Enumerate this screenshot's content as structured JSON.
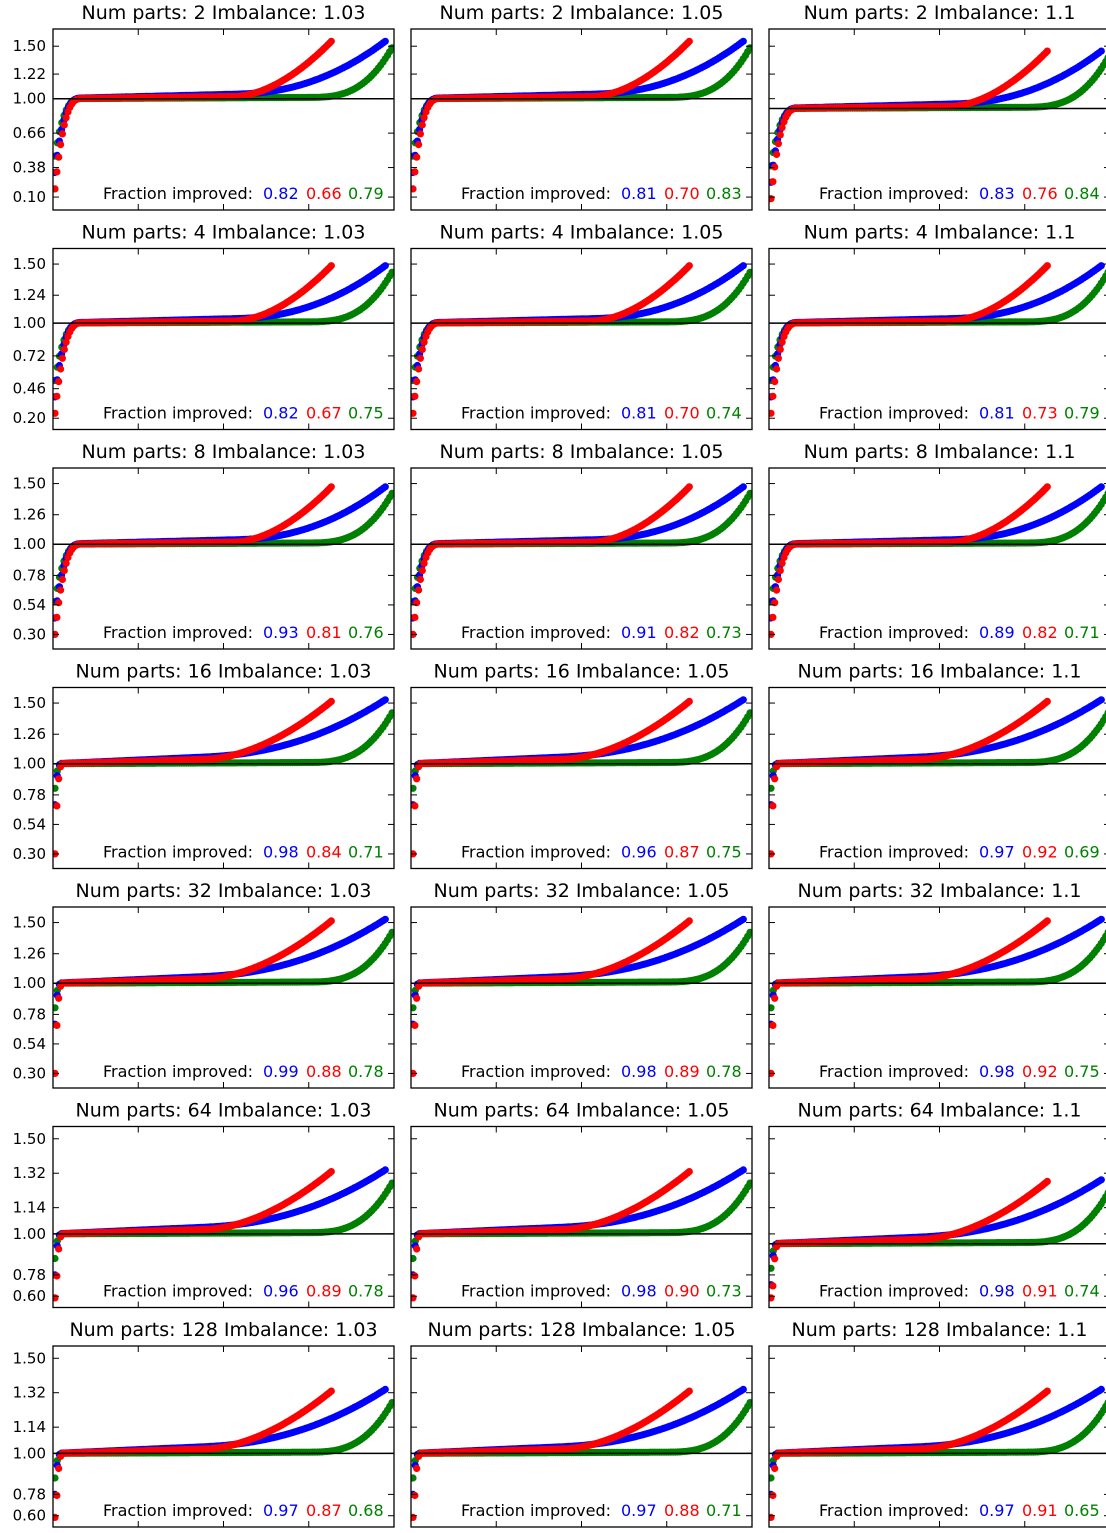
{
  "chart_data": {
    "type": "scatter",
    "layout_rows": 7,
    "layout_cols": 3,
    "series_colors": [
      "#0000ff",
      "#ff0000",
      "#008000"
    ],
    "reference_line_y": 1.0,
    "fraction_label": "Fraction improved:",
    "panels": [
      {
        "title": "Num parts: 2 Imbalance: 1.03",
        "yticks": [
          "1.50",
          "1.22",
          "1.00",
          "0.66",
          "0.38",
          "0.10"
        ],
        "fractions": [
          "0.82",
          "0.66",
          "0.79"
        ]
      },
      {
        "title": "Num parts: 2 Imbalance: 1.05",
        "yticks": [],
        "fractions": [
          "0.81",
          "0.70",
          "0.83"
        ]
      },
      {
        "title": "Num parts: 2 Imbalance: 1.1",
        "yticks": [],
        "fractions": [
          "0.83",
          "0.76",
          "0.84"
        ]
      },
      {
        "title": "Num parts: 4 Imbalance: 1.03",
        "yticks": [
          "1.50",
          "1.24",
          "1.00",
          "0.72",
          "0.46",
          "0.20"
        ],
        "fractions": [
          "0.82",
          "0.67",
          "0.75"
        ]
      },
      {
        "title": "Num parts: 4 Imbalance: 1.05",
        "yticks": [],
        "fractions": [
          "0.81",
          "0.70",
          "0.74"
        ]
      },
      {
        "title": "Num parts: 4 Imbalance: 1.1",
        "yticks": [],
        "fractions": [
          "0.81",
          "0.73",
          "0.79"
        ]
      },
      {
        "title": "Num parts: 8 Imbalance: 1.03",
        "yticks": [
          "1.50",
          "1.26",
          "1.00",
          "0.78",
          "0.54",
          "0.30"
        ],
        "fractions": [
          "0.93",
          "0.81",
          "0.76"
        ]
      },
      {
        "title": "Num parts: 8 Imbalance: 1.05",
        "yticks": [],
        "fractions": [
          "0.91",
          "0.82",
          "0.73"
        ]
      },
      {
        "title": "Num parts: 8 Imbalance: 1.1",
        "yticks": [],
        "fractions": [
          "0.89",
          "0.82",
          "0.71"
        ]
      },
      {
        "title": "Num parts: 16 Imbalance: 1.03",
        "yticks": [
          "1.50",
          "1.26",
          "1.00",
          "0.78",
          "0.54",
          "0.30"
        ],
        "fractions": [
          "0.98",
          "0.84",
          "0.71"
        ]
      },
      {
        "title": "Num parts: 16 Imbalance: 1.05",
        "yticks": [],
        "fractions": [
          "0.96",
          "0.87",
          "0.75"
        ]
      },
      {
        "title": "Num parts: 16 Imbalance: 1.1",
        "yticks": [],
        "fractions": [
          "0.97",
          "0.92",
          "0.69"
        ]
      },
      {
        "title": "Num parts: 32 Imbalance: 1.03",
        "yticks": [
          "1.50",
          "1.26",
          "1.00",
          "0.78",
          "0.54",
          "0.30"
        ],
        "fractions": [
          "0.99",
          "0.88",
          "0.78"
        ]
      },
      {
        "title": "Num parts: 32 Imbalance: 1.05",
        "yticks": [],
        "fractions": [
          "0.98",
          "0.89",
          "0.78"
        ]
      },
      {
        "title": "Num parts: 32 Imbalance: 1.1",
        "yticks": [],
        "fractions": [
          "0.98",
          "0.92",
          "0.75"
        ]
      },
      {
        "title": "Num parts: 64 Imbalance: 1.03",
        "yticks": [
          "1.50",
          "1.32",
          "1.14",
          "1.00",
          "0.78",
          "0.60"
        ],
        "fractions": [
          "0.96",
          "0.89",
          "0.78"
        ]
      },
      {
        "title": "Num parts: 64 Imbalance: 1.05",
        "yticks": [],
        "fractions": [
          "0.98",
          "0.90",
          "0.73"
        ]
      },
      {
        "title": "Num parts: 64 Imbalance: 1.1",
        "yticks": [],
        "fractions": [
          "0.98",
          "0.91",
          "0.74"
        ]
      },
      {
        "title": "Num parts: 128 Imbalance: 1.03",
        "yticks": [
          "1.50",
          "1.32",
          "1.14",
          "1.00",
          "0.78",
          "0.60"
        ],
        "fractions": [
          "0.97",
          "0.87",
          "0.68"
        ]
      },
      {
        "title": "Num parts: 128 Imbalance: 1.05",
        "yticks": [],
        "fractions": [
          "0.97",
          "0.88",
          "0.71"
        ]
      },
      {
        "title": "Num parts: 128 Imbalance: 1.1",
        "yticks": [],
        "fractions": [
          "0.97",
          "0.91",
          "0.65"
        ]
      }
    ]
  }
}
